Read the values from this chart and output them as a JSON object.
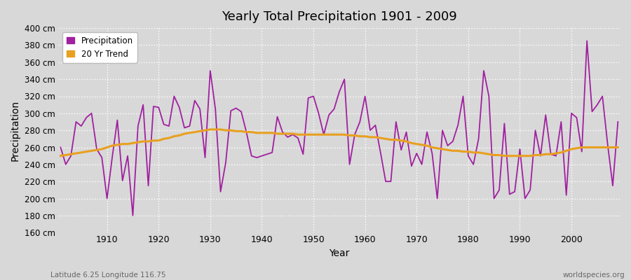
{
  "title": "Yearly Total Precipitation 1901 - 2009",
  "xlabel": "Year",
  "ylabel": "Precipitation",
  "subtitle_left": "Latitude 6.25 Longitude 116.75",
  "subtitle_right": "worldspecies.org",
  "ylim": [
    160,
    400
  ],
  "ytick_step": 20,
  "legend_labels": [
    "Precipitation",
    "20 Yr Trend"
  ],
  "precip_color": "#a020a0",
  "trend_color": "#e8a020",
  "bg_color": "#d8d8d8",
  "grid_color": "#ffffff",
  "years": [
    1901,
    1902,
    1903,
    1904,
    1905,
    1906,
    1907,
    1908,
    1909,
    1910,
    1911,
    1912,
    1913,
    1914,
    1915,
    1916,
    1917,
    1918,
    1919,
    1920,
    1921,
    1922,
    1923,
    1924,
    1925,
    1926,
    1927,
    1928,
    1929,
    1930,
    1931,
    1932,
    1933,
    1934,
    1935,
    1936,
    1937,
    1938,
    1939,
    1940,
    1941,
    1942,
    1943,
    1944,
    1945,
    1946,
    1947,
    1948,
    1949,
    1950,
    1951,
    1952,
    1953,
    1954,
    1955,
    1956,
    1957,
    1958,
    1959,
    1960,
    1961,
    1962,
    1963,
    1964,
    1965,
    1966,
    1967,
    1968,
    1969,
    1970,
    1971,
    1972,
    1973,
    1974,
    1975,
    1976,
    1977,
    1978,
    1979,
    1980,
    1981,
    1982,
    1983,
    1984,
    1985,
    1986,
    1987,
    1988,
    1989,
    1990,
    1991,
    1992,
    1993,
    1994,
    1995,
    1996,
    1997,
    1998,
    1999,
    2000,
    2001,
    2002,
    2003,
    2004,
    2005,
    2006,
    2007,
    2008,
    2009
  ],
  "precip": [
    260,
    240,
    250,
    290,
    285,
    295,
    300,
    258,
    248,
    200,
    248,
    292,
    221,
    250,
    180,
    285,
    310,
    215,
    308,
    307,
    287,
    285,
    320,
    307,
    283,
    285,
    315,
    305,
    248,
    350,
    305,
    208,
    242,
    303,
    306,
    302,
    278,
    250,
    248,
    250,
    252,
    254,
    296,
    278,
    272,
    275,
    271,
    252,
    318,
    320,
    300,
    275,
    298,
    305,
    325,
    340,
    240,
    275,
    290,
    320,
    280,
    286,
    254,
    220,
    220,
    290,
    257,
    278,
    238,
    253,
    240,
    278,
    253,
    200,
    280,
    262,
    267,
    286,
    320,
    250,
    240,
    270,
    350,
    320,
    200,
    210,
    288,
    205,
    208,
    258,
    200,
    210,
    280,
    250,
    298,
    252,
    250,
    290,
    204,
    300,
    295,
    255,
    385,
    302,
    310,
    320,
    264,
    215,
    290
  ],
  "trend": [
    250,
    251,
    252,
    253,
    254,
    255,
    256,
    257,
    258,
    260,
    262,
    263,
    264,
    264,
    265,
    266,
    267,
    267,
    268,
    268,
    270,
    271,
    273,
    274,
    276,
    277,
    278,
    279,
    280,
    281,
    281,
    281,
    280,
    280,
    279,
    279,
    278,
    278,
    277,
    277,
    277,
    277,
    276,
    276,
    276,
    276,
    275,
    275,
    275,
    275,
    275,
    275,
    275,
    275,
    275,
    275,
    274,
    274,
    273,
    273,
    272,
    272,
    271,
    270,
    269,
    269,
    268,
    267,
    265,
    264,
    263,
    262,
    260,
    259,
    258,
    257,
    256,
    256,
    255,
    255,
    254,
    254,
    253,
    252,
    251,
    251,
    250,
    250,
    250,
    250,
    250,
    250,
    251,
    251,
    252,
    252,
    253,
    254,
    256,
    258,
    259,
    260,
    260,
    260,
    260,
    260,
    260,
    260,
    260
  ]
}
